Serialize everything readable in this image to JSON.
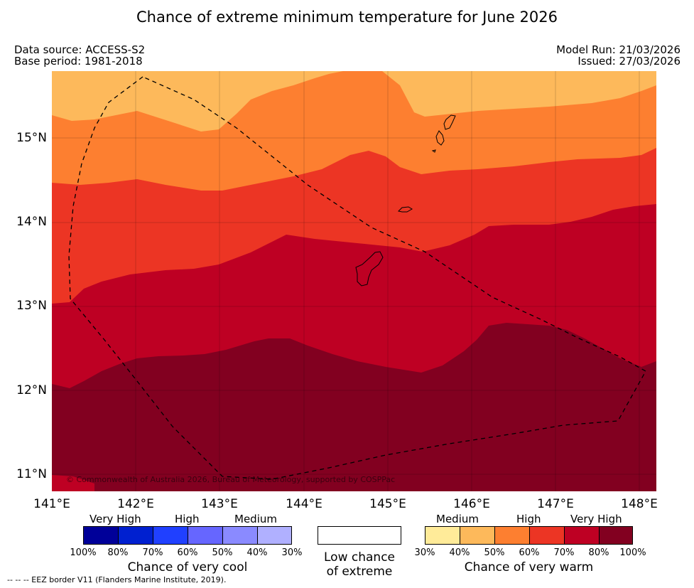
{
  "title": "Chance of extreme minimum temperature for June 2026",
  "meta": {
    "data_source": "Data source: ACCESS-S2",
    "base_period": "Base period: 1981-2018",
    "model_run": "Model Run: 21/03/2026",
    "issued": "Issued: 27/03/2026"
  },
  "map": {
    "lat_labels": [
      "15°N",
      "14°N",
      "13°N",
      "12°N",
      "11°N"
    ],
    "lon_labels": [
      "141°E",
      "142°E",
      "143°E",
      "144°E",
      "145°E",
      "146°E",
      "147°E",
      "148°E"
    ],
    "copyright": "© Commonwealth of Australia 2026, Bureau of Meteorology, supported by COSPPac",
    "band_colors": [
      "#fdb95b",
      "#fd7f30",
      "#ec3524",
      "#be0023",
      "#820020"
    ]
  },
  "legend": {
    "cool": {
      "levels": [
        "Very High",
        "High",
        "Medium"
      ],
      "percent_labels": [
        "100%",
        "80%",
        "70%",
        "60%",
        "50%",
        "40%",
        "30%"
      ],
      "colors": [
        "#000099",
        "#0020d0",
        "#2040ff",
        "#6666ff",
        "#8a8aff",
        "#b0b0ff"
      ],
      "caption": "Chance of very cool"
    },
    "neutral": {
      "caption_line1": "Low chance",
      "caption_line2": "of extreme",
      "color": "#ffffff"
    },
    "warm": {
      "levels": [
        "Medium",
        "High",
        "Very High"
      ],
      "percent_labels": [
        "30%",
        "40%",
        "50%",
        "60%",
        "70%",
        "80%",
        "100%"
      ],
      "colors": [
        "#ffeb99",
        "#fdb95b",
        "#fd7f30",
        "#ec3524",
        "#be0023",
        "#820020"
      ],
      "caption": "Chance of very warm"
    }
  },
  "eez_note": "--  --  -- EEZ border V11 (Flanders Marine Institute, 2019)."
}
